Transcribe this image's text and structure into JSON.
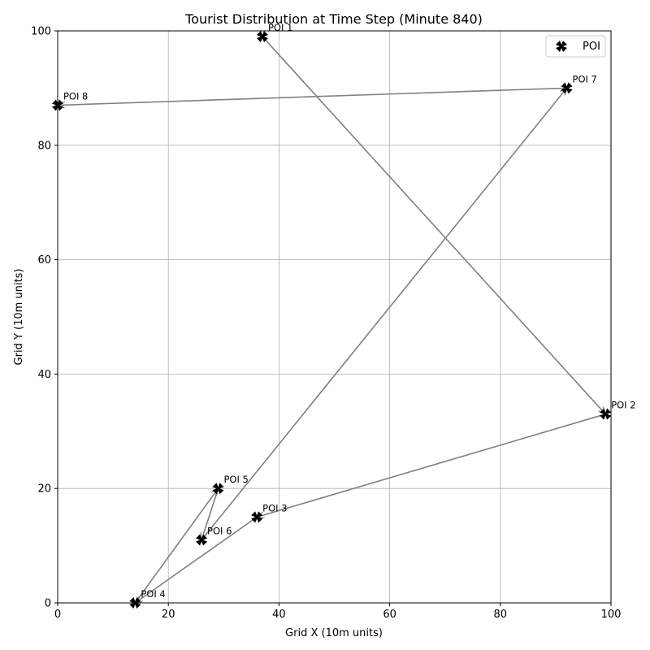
{
  "chart_data": {
    "type": "scatter",
    "title": "Tourist Distribution at Time Step (Minute 840)",
    "xlabel": "Grid X (10m units)",
    "ylabel": "Grid Y (10m units)",
    "xlim": [
      0,
      100
    ],
    "ylim": [
      0,
      100
    ],
    "xticks": [
      0,
      20,
      40,
      60,
      80,
      100
    ],
    "yticks": [
      0,
      20,
      40,
      60,
      80,
      100
    ],
    "grid": true,
    "legend": {
      "position": "top-right",
      "entries": [
        "POI"
      ]
    },
    "series": [
      {
        "name": "POI",
        "marker": "X",
        "color": "#000000",
        "points": [
          {
            "label": "POI 1",
            "x": 37,
            "y": 99
          },
          {
            "label": "POI 2",
            "x": 99,
            "y": 33
          },
          {
            "label": "POI 3",
            "x": 36,
            "y": 15
          },
          {
            "label": "POI 4",
            "x": 14,
            "y": 0
          },
          {
            "label": "POI 5",
            "x": 29,
            "y": 20
          },
          {
            "label": "POI 6",
            "x": 26,
            "y": 11
          },
          {
            "label": "POI 7",
            "x": 92,
            "y": 90
          },
          {
            "label": "POI 8",
            "x": 0,
            "y": 87
          }
        ]
      }
    ],
    "arrows": {
      "color": "#808080",
      "paths": [
        {
          "from": "POI 1",
          "to": "POI 2"
        },
        {
          "from": "POI 2",
          "to": "POI 3"
        },
        {
          "from": "POI 3",
          "to": "POI 4"
        },
        {
          "from": "POI 4",
          "to": "POI 5"
        },
        {
          "from": "POI 5",
          "to": "POI 6"
        },
        {
          "from": "POI 6",
          "to": "POI 7"
        },
        {
          "from": "POI 7",
          "to": "POI 8"
        }
      ]
    }
  }
}
